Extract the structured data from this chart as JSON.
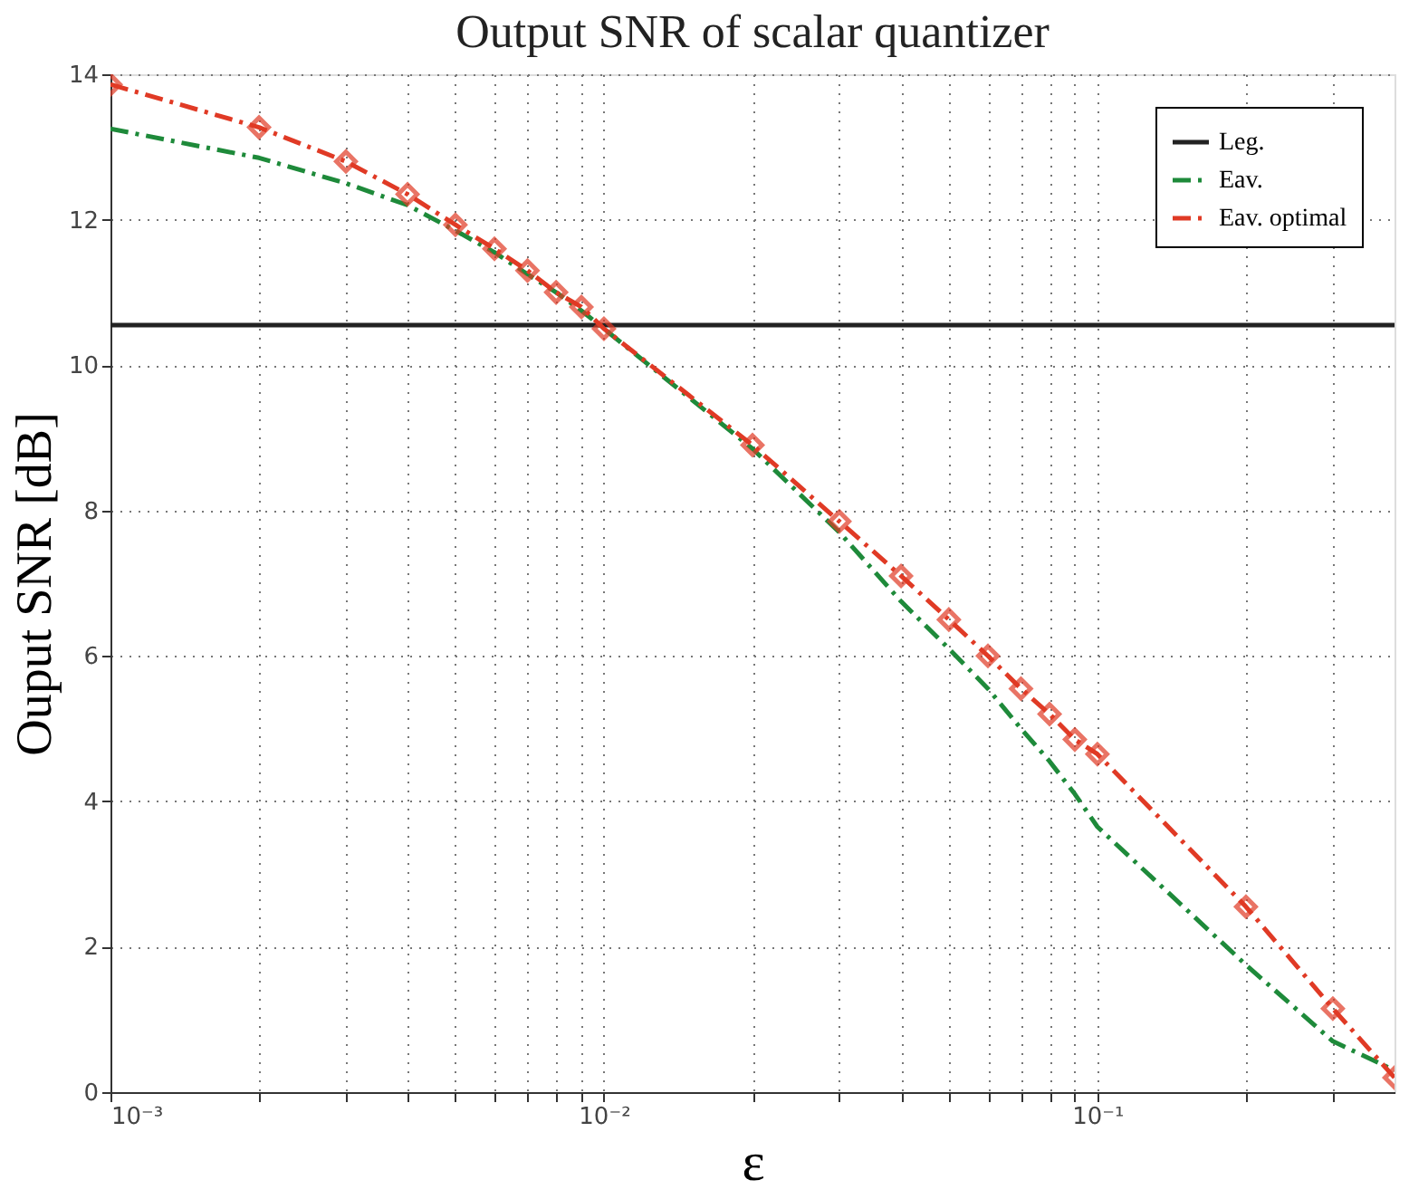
{
  "chart_data": {
    "type": "line",
    "title": "Output SNR of scalar quantizer",
    "xlabel": "ε",
    "ylabel": "Ouput SNR [dB]",
    "log": "x",
    "grid": true,
    "legend": "top right",
    "xlim": [
      0.001,
      0.4
    ],
    "ylim": [
      0,
      14
    ],
    "xticks": [
      {
        "value": 0.001,
        "label": "10⁻³"
      },
      {
        "value": 0.002,
        "label": null
      },
      {
        "value": 0.003,
        "label": null
      },
      {
        "value": 0.004,
        "label": null
      },
      {
        "value": 0.005,
        "label": null
      },
      {
        "value": 0.006,
        "label": null
      },
      {
        "value": 0.007,
        "label": null
      },
      {
        "value": 0.008,
        "label": null
      },
      {
        "value": 0.009,
        "label": null
      },
      {
        "value": 0.01,
        "label": "10⁻²"
      },
      {
        "value": 0.02,
        "label": null
      },
      {
        "value": 0.03,
        "label": null
      },
      {
        "value": 0.04,
        "label": null
      },
      {
        "value": 0.05,
        "label": null
      },
      {
        "value": 0.06,
        "label": null
      },
      {
        "value": 0.07,
        "label": null
      },
      {
        "value": 0.08,
        "label": null
      },
      {
        "value": 0.09,
        "label": null
      },
      {
        "value": 0.1,
        "label": "10⁻¹"
      },
      {
        "value": 0.2,
        "label": null
      },
      {
        "value": 0.3,
        "label": null
      }
    ],
    "yticks": [
      0,
      2,
      4,
      6,
      8,
      10,
      12,
      14
    ],
    "series": [
      {
        "name": "Leg.",
        "color": "#222222",
        "line_style": "solid",
        "marker": "none",
        "x": [
          0.001,
          0.4
        ],
        "values": [
          10.55,
          10.55
        ]
      },
      {
        "name": "Eav.",
        "color": "#1e8a3a",
        "line_style": "dashdot",
        "marker": "none",
        "x": [
          0.001,
          0.002,
          0.003,
          0.004,
          0.005,
          0.006,
          0.007,
          0.008,
          0.009,
          0.01,
          0.02,
          0.03,
          0.04,
          0.05,
          0.06,
          0.07,
          0.08,
          0.09,
          0.1,
          0.2,
          0.3,
          0.4
        ],
        "values": [
          13.25,
          12.85,
          12.5,
          12.2,
          11.85,
          11.55,
          11.25,
          11.0,
          10.75,
          10.5,
          8.85,
          7.7,
          6.75,
          6.1,
          5.55,
          5.0,
          4.55,
          4.1,
          3.65,
          1.75,
          0.7,
          0.3
        ]
      },
      {
        "name": "Eav. optimal",
        "color": "#e03a25",
        "line_style": "dashdot",
        "marker": "diamond",
        "x": [
          0.001,
          0.002,
          0.003,
          0.004,
          0.005,
          0.006,
          0.007,
          0.008,
          0.009,
          0.01,
          0.02,
          0.03,
          0.04,
          0.05,
          0.06,
          0.07,
          0.08,
          0.09,
          0.1,
          0.2,
          0.3,
          0.4
        ],
        "values": [
          13.86,
          13.27,
          12.8,
          12.35,
          11.93,
          11.6,
          11.3,
          11.0,
          10.8,
          10.5,
          8.9,
          7.85,
          7.1,
          6.5,
          6.0,
          5.55,
          5.2,
          4.85,
          4.65,
          2.55,
          1.15,
          0.2
        ]
      }
    ]
  }
}
